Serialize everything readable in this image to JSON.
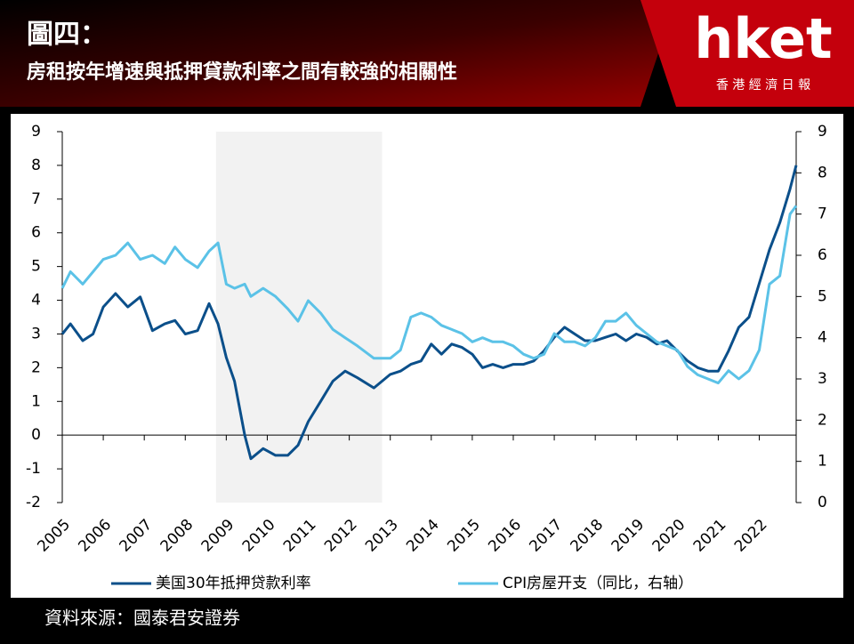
{
  "header": {
    "title": "圖四：",
    "subtitle": "房租按年增速與抵押貸款利率之間有較強的相關性",
    "brand": "hket",
    "brand_sub": "香 港 經 濟 日 報"
  },
  "chart_data": {
    "type": "line",
    "x": [
      2005.0,
      2005.2,
      2005.5,
      2005.75,
      2006.0,
      2006.3,
      2006.6,
      2006.9,
      2007.2,
      2007.5,
      2007.75,
      2008.0,
      2008.3,
      2008.58,
      2008.8,
      2009.0,
      2009.2,
      2009.45,
      2009.6,
      2009.9,
      2010.2,
      2010.5,
      2010.75,
      2011.0,
      2011.3,
      2011.6,
      2011.9,
      2012.2,
      2012.6,
      2013.0,
      2013.25,
      2013.5,
      2013.75,
      2014.0,
      2014.25,
      2014.5,
      2014.75,
      2015.0,
      2015.25,
      2015.5,
      2015.75,
      2016.0,
      2016.25,
      2016.5,
      2016.75,
      2017.0,
      2017.25,
      2017.5,
      2017.75,
      2018.0,
      2018.25,
      2018.5,
      2018.75,
      2019.0,
      2019.25,
      2019.5,
      2019.75,
      2020.0,
      2020.25,
      2020.5,
      2020.75,
      2021.0,
      2021.25,
      2021.5,
      2021.75,
      2022.0,
      2022.25,
      2022.5,
      2022.75,
      2022.9
    ],
    "series": [
      {
        "name": "美国30年抵押贷款利率",
        "color": "#0b4f8a",
        "values": [
          3.0,
          3.3,
          2.8,
          3.0,
          3.8,
          4.2,
          3.8,
          4.1,
          3.1,
          3.3,
          3.4,
          3.0,
          3.1,
          3.9,
          3.3,
          2.3,
          1.6,
          0.0,
          -0.7,
          -0.4,
          -0.6,
          -0.6,
          -0.3,
          0.4,
          1.0,
          1.6,
          1.9,
          1.7,
          1.4,
          1.8,
          1.9,
          2.1,
          2.2,
          2.7,
          2.4,
          2.7,
          2.6,
          2.4,
          2.0,
          2.1,
          2.0,
          2.1,
          2.1,
          2.2,
          2.5,
          2.9,
          3.2,
          3.0,
          2.8,
          2.8,
          2.9,
          3.0,
          2.8,
          3.0,
          2.9,
          2.7,
          2.8,
          2.5,
          2.2,
          2.0,
          1.9,
          1.9,
          2.5,
          3.2,
          3.5,
          4.5,
          5.5,
          6.3,
          7.3,
          8.0
        ]
      },
      {
        "name": "CPI房屋开支（同比，右轴）",
        "color": "#5bc2e7",
        "axis": "y2",
        "values": [
          5.2,
          5.6,
          5.3,
          5.6,
          5.9,
          6.0,
          6.3,
          5.9,
          6.0,
          5.8,
          6.2,
          5.9,
          5.7,
          6.1,
          6.3,
          5.3,
          5.2,
          5.3,
          5.0,
          5.2,
          5.0,
          4.7,
          4.4,
          4.9,
          4.6,
          4.2,
          4.0,
          3.8,
          3.5,
          3.5,
          3.7,
          4.5,
          4.6,
          4.5,
          4.3,
          4.2,
          4.1,
          3.9,
          4.0,
          3.9,
          3.9,
          3.8,
          3.6,
          3.5,
          3.6,
          4.1,
          3.9,
          3.9,
          3.8,
          4.0,
          4.4,
          4.4,
          4.6,
          4.3,
          4.1,
          3.9,
          3.8,
          3.7,
          3.3,
          3.1,
          3.0,
          2.9,
          3.2,
          3.0,
          3.2,
          3.7,
          5.3,
          5.5,
          7.0,
          7.2
        ]
      }
    ],
    "xlim": [
      2005,
      2022.9
    ],
    "xticks": [
      2005,
      2006,
      2007,
      2008,
      2009,
      2010,
      2011,
      2012,
      2013,
      2014,
      2015,
      2016,
      2017,
      2018,
      2019,
      2020,
      2021,
      2022
    ],
    "ylim": [
      -2,
      9
    ],
    "yticks": [
      -2,
      -1,
      0,
      1,
      2,
      3,
      4,
      5,
      6,
      7,
      8,
      9
    ],
    "y2lim": [
      0,
      9
    ],
    "y2ticks": [
      0,
      1,
      2,
      3,
      4,
      5,
      6,
      7,
      8,
      9
    ],
    "shaded_region": [
      2008.75,
      2012.8
    ],
    "shade_color": "#f2f2f2",
    "legend": "bottom"
  },
  "footer": {
    "source": "資料來源：國泰君安證券"
  }
}
